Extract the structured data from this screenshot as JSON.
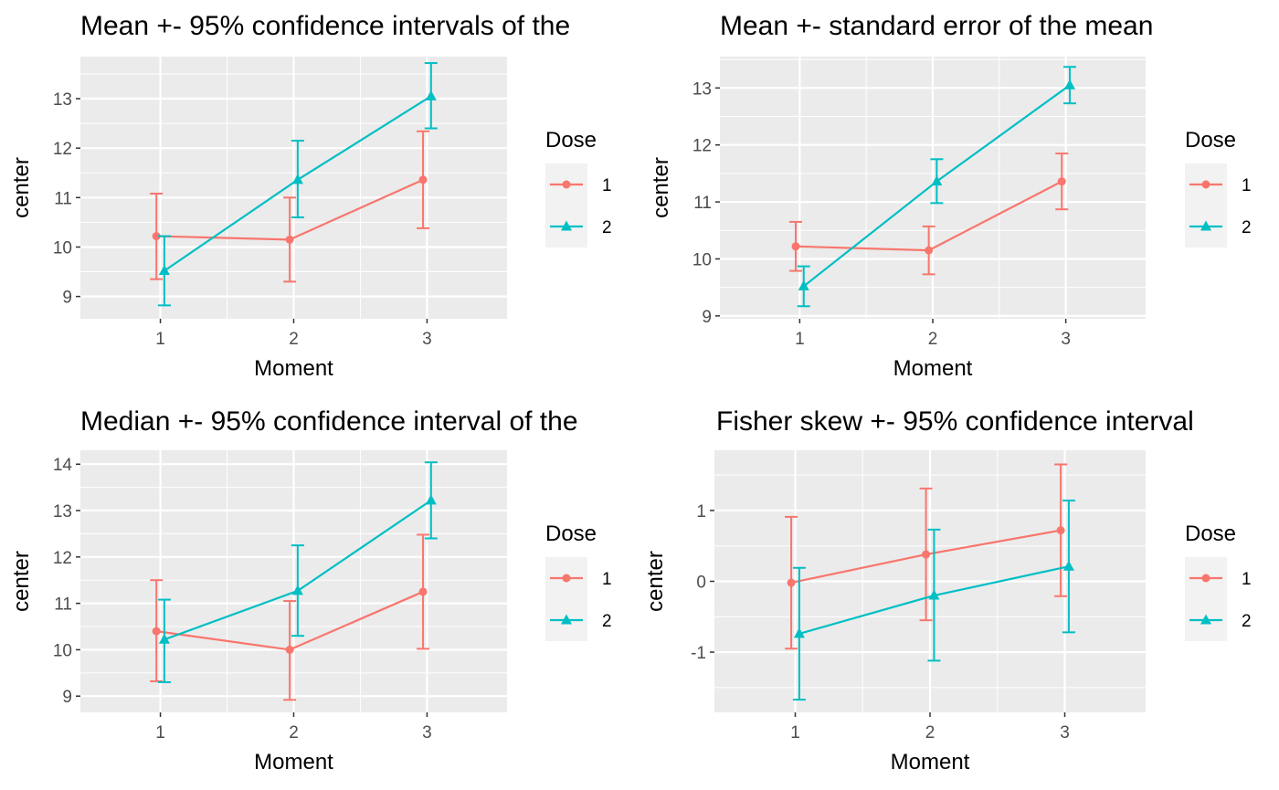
{
  "chart_data": [
    {
      "type": "line",
      "title": "Mean +- 95% confidence intervals of the",
      "xlabel": "Moment",
      "ylabel": "center",
      "x": [
        1,
        2,
        3
      ],
      "xlim": [
        0.4,
        3.6
      ],
      "ylim": [
        8.55,
        13.85
      ],
      "yticks": [
        9,
        10,
        11,
        12,
        13
      ],
      "grid": true,
      "legend": {
        "title": "Dose",
        "position": "right"
      },
      "series": [
        {
          "name": "1",
          "color": "#F8766D",
          "marker": "circle",
          "values": [
            10.22,
            10.15,
            11.36
          ],
          "lower": [
            9.35,
            9.3,
            10.38
          ],
          "upper": [
            11.08,
            11.0,
            12.34
          ]
        },
        {
          "name": "2",
          "color": "#00BFC4",
          "marker": "triangle",
          "values": [
            9.52,
            11.36,
            13.05
          ],
          "lower": [
            8.82,
            10.6,
            12.4
          ],
          "upper": [
            10.22,
            12.15,
            13.72
          ]
        }
      ]
    },
    {
      "type": "line",
      "title": "Mean +- standard error of the mean",
      "xlabel": "Moment",
      "ylabel": "center",
      "x": [
        1,
        2,
        3
      ],
      "xlim": [
        0.4,
        3.6
      ],
      "ylim": [
        8.95,
        13.55
      ],
      "yticks": [
        9,
        10,
        11,
        12,
        13
      ],
      "grid": true,
      "legend": {
        "title": "Dose",
        "position": "right"
      },
      "series": [
        {
          "name": "1",
          "color": "#F8766D",
          "marker": "circle",
          "values": [
            10.22,
            10.15,
            11.36
          ],
          "lower": [
            9.79,
            9.73,
            10.87
          ],
          "upper": [
            10.65,
            10.57,
            11.85
          ]
        },
        {
          "name": "2",
          "color": "#00BFC4",
          "marker": "triangle",
          "values": [
            9.52,
            11.36,
            13.05
          ],
          "lower": [
            9.17,
            10.98,
            12.73
          ],
          "upper": [
            9.87,
            11.75,
            13.37
          ]
        }
      ]
    },
    {
      "type": "line",
      "title": "Median +- 95% confidence interval of the",
      "xlabel": "Moment",
      "ylabel": "center",
      "x": [
        1,
        2,
        3
      ],
      "xlim": [
        0.4,
        3.6
      ],
      "ylim": [
        8.65,
        14.3
      ],
      "yticks": [
        9,
        10,
        11,
        12,
        13,
        14
      ],
      "grid": true,
      "legend": {
        "title": "Dose",
        "position": "right"
      },
      "series": [
        {
          "name": "1",
          "color": "#F8766D",
          "marker": "circle",
          "values": [
            10.4,
            10.0,
            11.25
          ],
          "lower": [
            9.32,
            8.92,
            10.02
          ],
          "upper": [
            11.5,
            11.05,
            12.48
          ]
        },
        {
          "name": "2",
          "color": "#00BFC4",
          "marker": "triangle",
          "values": [
            10.22,
            11.27,
            13.22
          ],
          "lower": [
            9.3,
            10.3,
            12.4
          ],
          "upper": [
            11.08,
            12.25,
            14.04
          ]
        }
      ]
    },
    {
      "type": "line",
      "title": "Fisher skew +- 95% confidence interval",
      "xlabel": "Moment",
      "ylabel": "center",
      "x": [
        1,
        2,
        3
      ],
      "xlim": [
        0.4,
        3.6
      ],
      "ylim": [
        -1.85,
        1.85
      ],
      "yticks": [
        -1,
        0,
        1
      ],
      "grid": true,
      "legend": {
        "title": "Dose",
        "position": "right"
      },
      "series": [
        {
          "name": "1",
          "color": "#F8766D",
          "marker": "circle",
          "values": [
            -0.02,
            0.38,
            0.72
          ],
          "lower": [
            -0.95,
            -0.55,
            -0.21
          ],
          "upper": [
            0.91,
            1.31,
            1.65
          ]
        },
        {
          "name": "2",
          "color": "#00BFC4",
          "marker": "triangle",
          "values": [
            -0.74,
            -0.2,
            0.21
          ],
          "lower": [
            -1.67,
            -1.12,
            -0.72
          ],
          "upper": [
            0.19,
            0.73,
            1.14
          ]
        }
      ]
    }
  ]
}
